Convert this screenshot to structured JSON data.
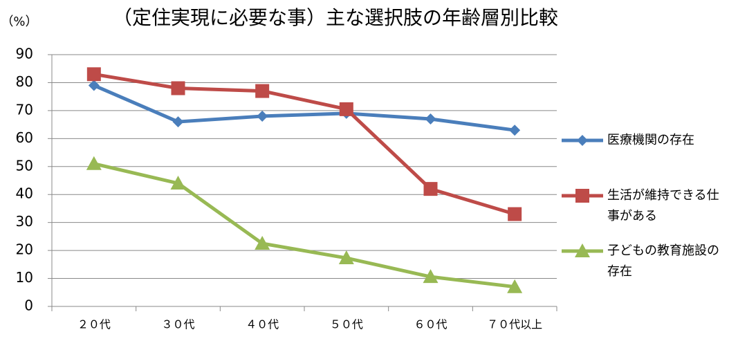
{
  "chart_data": {
    "type": "line",
    "title": "（定住実現に必要な事）主な選択肢の年齢層別比較",
    "y_label": "（%）",
    "categories": [
      "２０代",
      "３０代",
      "４０代",
      "５０代",
      "６０代",
      "７０代以上"
    ],
    "series": [
      {
        "name": "医療機関の存在",
        "color": "#4a7ebb",
        "marker": "diamond",
        "values": [
          79,
          66,
          68,
          69,
          67,
          63
        ]
      },
      {
        "name": "生活が維持できる仕事がある",
        "color": "#be4b48",
        "marker": "square",
        "values": [
          83,
          78,
          77,
          70.5,
          42,
          33
        ]
      },
      {
        "name": "子どもの教育施設の存在",
        "color": "#98b954",
        "marker": "triangle",
        "values": [
          51,
          44,
          22.5,
          17.3,
          10.6,
          7
        ]
      }
    ],
    "ylim": [
      0,
      90
    ],
    "yticks": [
      0,
      10,
      20,
      30,
      40,
      50,
      60,
      70,
      80,
      90
    ],
    "grid": true,
    "legend": "right"
  }
}
